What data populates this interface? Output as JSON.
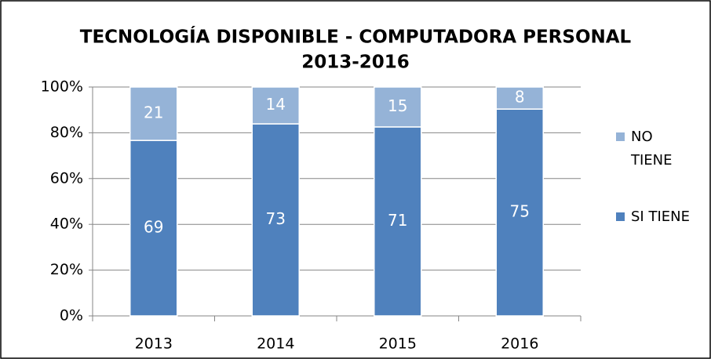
{
  "chart_data": {
    "type": "bar",
    "stacking": "percent",
    "title": "TECNOLOGÍA DISPONIBLE - COMPUTADORA PERSONAL",
    "subtitle": "2013-2016",
    "categories": [
      "2013",
      "2014",
      "2015",
      "2016"
    ],
    "series": [
      {
        "name": "SI TIENE",
        "color": "#4f81bd",
        "values": [
          69,
          73,
          71,
          75
        ]
      },
      {
        "name": "NO TIENE",
        "color": "#95b3d7",
        "values": [
          21,
          14,
          15,
          8
        ]
      }
    ],
    "ylim": [
      0,
      100
    ],
    "yticks": [
      {
        "value": 0,
        "label": "0%"
      },
      {
        "value": 20,
        "label": "20%"
      },
      {
        "value": 40,
        "label": "40%"
      },
      {
        "value": 60,
        "label": "60%"
      },
      {
        "value": 80,
        "label": "80%"
      },
      {
        "value": 100,
        "label": "100%"
      }
    ],
    "grid": true,
    "legend": "right"
  }
}
